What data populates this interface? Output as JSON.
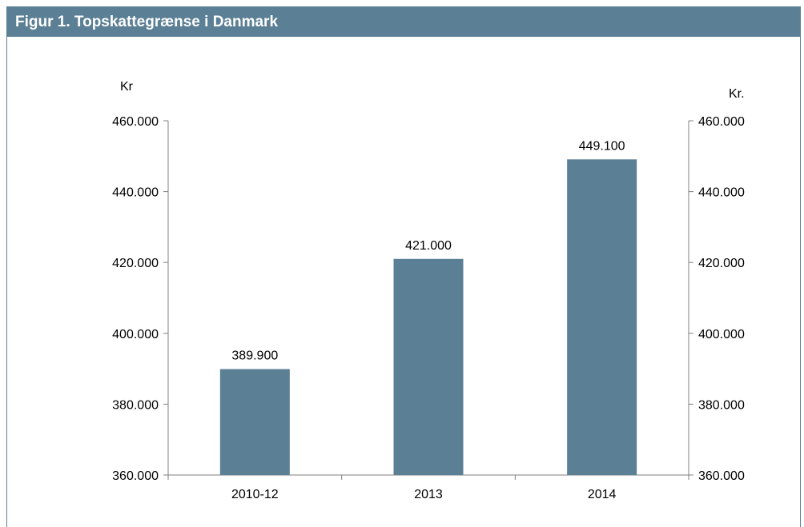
{
  "title": "Figur 1. Topskattegrænse i Danmark",
  "colors": {
    "bar": "#5b7f95",
    "header": "#5b7f95",
    "axis": "#808080"
  },
  "chart_data": {
    "type": "bar",
    "categories": [
      "2010-12",
      "2013",
      "2014"
    ],
    "values": [
      389900,
      421000,
      449100
    ],
    "data_labels": [
      "389.900",
      "421.000",
      "449.100"
    ],
    "ylim": [
      360000,
      460000
    ],
    "y_ticks": [
      "360.000",
      "380.000",
      "400.000",
      "420.000",
      "440.000",
      "460.000"
    ],
    "ylabel_left": "Kr",
    "ylabel_right": "Kr.",
    "grid": false,
    "secondary_axis": true
  }
}
